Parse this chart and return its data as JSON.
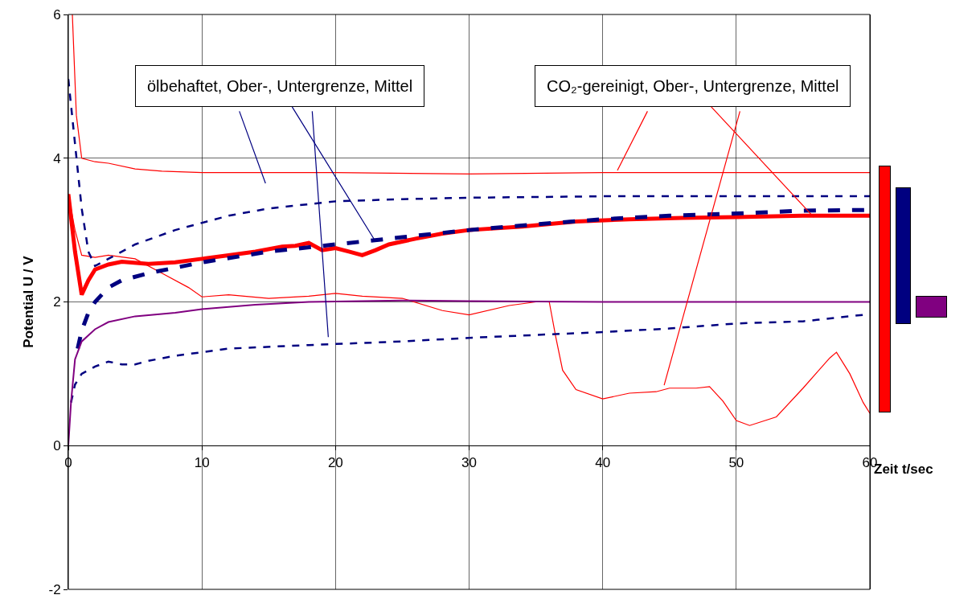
{
  "chart_data": {
    "type": "line",
    "ylabel": "Potential U / V",
    "xlabel": "Zeit t/sec",
    "xlim": [
      0,
      60
    ],
    "xticks": [
      0,
      10,
      20,
      30,
      40,
      50,
      60
    ],
    "ylim": [
      -2,
      6
    ],
    "yticks": [
      -2,
      0,
      2,
      4,
      6
    ],
    "grid": true,
    "marker": "none",
    "annotations": [
      {
        "text": "ölbehaftet, Ober-, Untergrenze, Mittel",
        "x": 22.9,
        "y": 2.87
      },
      {
        "text": "CO₂-gereinigt, Ober-, Untergrenze, Mittel",
        "x": 55.8,
        "y": 3.18
      }
    ],
    "series": [
      {
        "color": "#ff0000",
        "line_style": "solid",
        "x": [
          0.3,
          0.6,
          1,
          2,
          3,
          5,
          7,
          10,
          15,
          20,
          30,
          40,
          50,
          60
        ],
        "values": [
          6,
          4.6,
          4.0,
          3.95,
          3.93,
          3.85,
          3.82,
          3.8,
          3.8,
          3.8,
          3.78,
          3.8,
          3.8,
          3.8
        ]
      },
      {
        "color": "#ff0000",
        "line_style": "solid",
        "x": [
          0,
          0.5,
          1,
          2,
          3,
          5,
          7,
          9,
          10,
          12,
          15,
          18,
          20,
          22,
          25,
          28,
          30,
          33,
          35,
          36,
          36.5,
          37,
          38,
          40,
          42,
          44,
          45,
          47,
          48,
          49,
          50,
          51,
          53,
          55,
          57,
          57.5,
          58.5,
          59.5,
          60
        ],
        "values": [
          3.5,
          3.0,
          2.65,
          2.62,
          2.65,
          2.6,
          2.4,
          2.2,
          2.07,
          2.1,
          2.05,
          2.08,
          2.12,
          2.08,
          2.05,
          1.88,
          1.82,
          1.95,
          2.0,
          2.0,
          1.5,
          1.05,
          0.78,
          0.65,
          0.73,
          0.75,
          0.8,
          0.8,
          0.82,
          0.62,
          0.35,
          0.28,
          0.4,
          0.8,
          1.22,
          1.3,
          1.0,
          0.6,
          0.45
        ]
      },
      {
        "color": "#ff0000",
        "line_style": "solid",
        "x": [
          0,
          0.5,
          1,
          1.5,
          2,
          3,
          4,
          6,
          8,
          10,
          12,
          14,
          16,
          17,
          18,
          19,
          20,
          21,
          22,
          23,
          24,
          26,
          28,
          30,
          34,
          38,
          42,
          46,
          50,
          55,
          60
        ],
        "values": [
          3.5,
          2.7,
          2.1,
          2.3,
          2.45,
          2.52,
          2.56,
          2.53,
          2.55,
          2.6,
          2.65,
          2.7,
          2.77,
          2.78,
          2.82,
          2.72,
          2.75,
          2.7,
          2.65,
          2.72,
          2.8,
          2.88,
          2.95,
          3.0,
          3.05,
          3.12,
          3.15,
          3.17,
          3.18,
          3.2,
          3.2
        ]
      },
      {
        "color": "#000080",
        "line_style": "dashed",
        "x": [
          0,
          0.5,
          1,
          1.5,
          2,
          3,
          5,
          8,
          12,
          15,
          20,
          25,
          30,
          40,
          50,
          60
        ],
        "values": [
          5.1,
          4.2,
          3.3,
          2.7,
          2.5,
          2.6,
          2.8,
          3.0,
          3.2,
          3.3,
          3.4,
          3.43,
          3.45,
          3.47,
          3.47,
          3.47
        ]
      },
      {
        "color": "#000080",
        "line_style": "dashed",
        "x": [
          0.7,
          1,
          1.5,
          2,
          3,
          4,
          6,
          10,
          15,
          20,
          25,
          30,
          35,
          40,
          45,
          50,
          55,
          60
        ],
        "values": [
          1.35,
          1.6,
          1.85,
          2.0,
          2.2,
          2.3,
          2.4,
          2.55,
          2.7,
          2.8,
          2.9,
          3.0,
          3.08,
          3.15,
          3.2,
          3.23,
          3.27,
          3.28
        ]
      },
      {
        "color": "#000080",
        "line_style": "dashed",
        "x": [
          0.2,
          0.5,
          1,
          2,
          3,
          4,
          5,
          6,
          8,
          12,
          18,
          25,
          30,
          40,
          45,
          50,
          55,
          60
        ],
        "values": [
          0.6,
          0.85,
          1.0,
          1.1,
          1.17,
          1.13,
          1.13,
          1.18,
          1.25,
          1.35,
          1.4,
          1.45,
          1.5,
          1.58,
          1.63,
          1.7,
          1.73,
          1.83
        ]
      },
      {
        "color": "#800080",
        "line_style": "solid",
        "x": [
          0,
          0.2,
          0.5,
          1,
          2,
          3,
          5,
          8,
          10,
          14,
          18,
          25,
          30,
          40,
          50,
          60
        ],
        "values": [
          0,
          0.6,
          1.2,
          1.45,
          1.62,
          1.72,
          1.8,
          1.85,
          1.9,
          1.96,
          2.0,
          2.02,
          2.01,
          2.0,
          2.0,
          2.0
        ]
      }
    ]
  }
}
